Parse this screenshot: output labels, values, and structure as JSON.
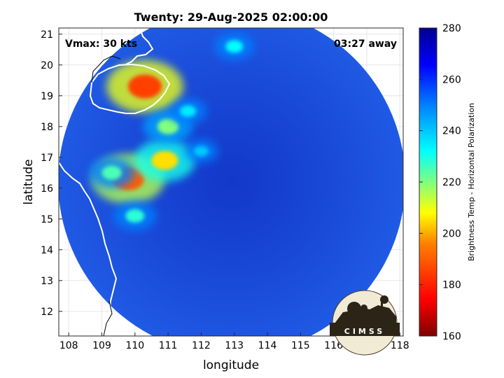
{
  "title": "Twenty: 29-Aug-2025 02:00:00",
  "annotations": {
    "vmax": "Vmax: 30 kts",
    "away": "03:27 away"
  },
  "logo_text": "CIMSS",
  "colors": {
    "land_outline": "#ffffff",
    "background_disk": "#1e4fe0",
    "colormap": [
      "#7f0000",
      "#ff0000",
      "#ff8000",
      "#ffff00",
      "#80ff80",
      "#00ffff",
      "#0080ff",
      "#0000ff",
      "#00008f"
    ]
  },
  "chart_data": {
    "type": "heatmap",
    "title": "Twenty: 29-Aug-2025 02:00:00",
    "xlabel": "longitude",
    "ylabel": "latitude",
    "xlim": [
      107.7,
      118.1
    ],
    "ylim": [
      11.2,
      21.2
    ],
    "xticks": [
      "108",
      "109",
      "110",
      "111",
      "112",
      "113",
      "114",
      "115",
      "116",
      "117",
      "118"
    ],
    "yticks": [
      "12",
      "13",
      "14",
      "15",
      "16",
      "17",
      "18",
      "19",
      "20",
      "21"
    ],
    "grid": true,
    "colorbar": {
      "label": "Brightness Temp - Horizontal Polarization",
      "range": [
        160,
        280
      ],
      "ticks": [
        "160",
        "180",
        "200",
        "220",
        "240",
        "260",
        "280"
      ]
    },
    "swath_center": [
      112.9,
      16.2
    ],
    "swath_radius_deg": 5.3,
    "cold_features": [
      {
        "lon": 109.8,
        "lat": 16.3,
        "tb": 190
      },
      {
        "lon": 110.3,
        "lat": 19.3,
        "tb": 185
      },
      {
        "lon": 110.9,
        "lat": 16.9,
        "tb": 205
      },
      {
        "lon": 111.0,
        "lat": 18.0,
        "tb": 220
      },
      {
        "lon": 109.3,
        "lat": 16.5,
        "tb": 225
      },
      {
        "lon": 110.0,
        "lat": 15.1,
        "tb": 228
      },
      {
        "lon": 111.6,
        "lat": 18.5,
        "tb": 235
      },
      {
        "lon": 112.0,
        "lat": 17.2,
        "tb": 240
      },
      {
        "lon": 113.0,
        "lat": 20.6,
        "tb": 232
      }
    ]
  }
}
